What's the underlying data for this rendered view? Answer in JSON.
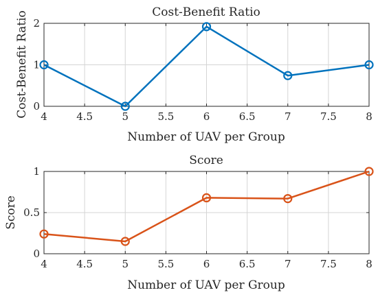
{
  "chart_data": [
    {
      "type": "line",
      "title": "Cost-Benefit Ratio",
      "xlabel": "Number of UAV per Group",
      "ylabel": "Cost-Benefit Ratio",
      "xlim": [
        4,
        8
      ],
      "ylim": [
        0,
        2
      ],
      "xticks": [
        4,
        4.5,
        5,
        5.5,
        6,
        6.5,
        7,
        7.5,
        8
      ],
      "yticks": [
        0,
        1,
        2
      ],
      "grid": true,
      "series": [
        {
          "color": "#0072bd",
          "marker": "circle",
          "x": [
            4,
            5,
            6,
            7,
            8
          ],
          "y": [
            1.0,
            0.0,
            1.92,
            0.74,
            1.0
          ]
        }
      ]
    },
    {
      "type": "line",
      "title": "Score",
      "xlabel": "Number of UAV per Group",
      "ylabel": "Score",
      "xlim": [
        4,
        8
      ],
      "ylim": [
        0,
        1
      ],
      "xticks": [
        4,
        4.5,
        5,
        5.5,
        6,
        6.5,
        7,
        7.5,
        8
      ],
      "yticks": [
        0,
        0.5,
        1
      ],
      "grid": true,
      "series": [
        {
          "color": "#d95319",
          "marker": "circle",
          "x": [
            4,
            5,
            6,
            7,
            8
          ],
          "y": [
            0.24,
            0.15,
            0.68,
            0.67,
            1.0
          ]
        }
      ]
    }
  ]
}
